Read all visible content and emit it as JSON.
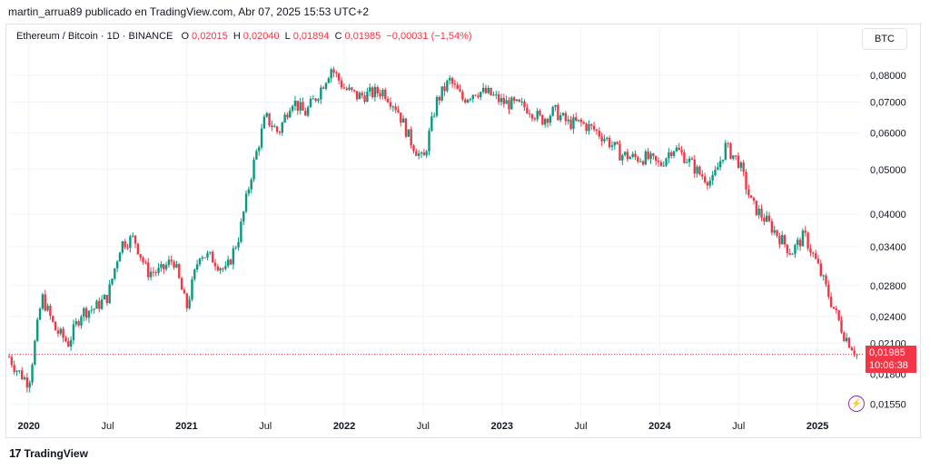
{
  "header": {
    "published_by": "martin_arrua89 publicado en TradingView.com, Abr 07, 2025 15:53 UTC+2"
  },
  "legend": {
    "symbol": "Ethereum / Bitcoin · 1D · BINANCE",
    "o_label": "O",
    "o_value": "0,02015",
    "h_label": "H",
    "h_value": "0,02040",
    "l_label": "L",
    "l_value": "0,01894",
    "c_label": "C",
    "c_value": "0,01985",
    "change": "−0,00031 (−1,54%)"
  },
  "currency_button": "BTC",
  "last_price": {
    "value": "0,01985",
    "countdown": "10:06:38"
  },
  "footer": {
    "brand": "TradingView",
    "logo_icon": "tradingview-logo-icon"
  },
  "colors": {
    "up": "#089981",
    "down": "#f23645",
    "grid": "#f0f3fa",
    "accent": "#9c27b0"
  },
  "chart_data": {
    "type": "candlestick",
    "symbol": "ETH/BTC",
    "timeframe": "1D",
    "scale": "log",
    "grid": true,
    "ylim": [
      0.0145,
      0.088
    ],
    "y_ticks": [
      "0,08000",
      "0,07000",
      "0,06000",
      "0,05000",
      "0,04000",
      "0,03400",
      "0,02800",
      "0,02400",
      "0,02100",
      "0,01800",
      "0,01550"
    ],
    "x_ticks": [
      "2020",
      "Jul",
      "2021",
      "Jul",
      "2022",
      "Jul",
      "2023",
      "Jul",
      "2024",
      "Jul",
      "2025"
    ],
    "series": [
      {
        "name": "ETH/BTC",
        "x": [
          "2019-11",
          "2019-12",
          "2020-01",
          "2020-02",
          "2020-03",
          "2020-04",
          "2020-05",
          "2020-06",
          "2020-07",
          "2020-08",
          "2020-09",
          "2020-10",
          "2020-11",
          "2020-12",
          "2021-01",
          "2021-02",
          "2021-03",
          "2021-04",
          "2021-05",
          "2021-06",
          "2021-07",
          "2021-08",
          "2021-09",
          "2021-10",
          "2021-11",
          "2021-12",
          "2022-01",
          "2022-02",
          "2022-03",
          "2022-04",
          "2022-05",
          "2022-06",
          "2022-07",
          "2022-08",
          "2022-09",
          "2022-10",
          "2022-11",
          "2022-12",
          "2023-01",
          "2023-02",
          "2023-03",
          "2023-04",
          "2023-05",
          "2023-06",
          "2023-07",
          "2023-08",
          "2023-09",
          "2023-10",
          "2023-11",
          "2023-12",
          "2024-01",
          "2024-02",
          "2024-03",
          "2024-04",
          "2024-05",
          "2024-06",
          "2024-07",
          "2024-08",
          "2024-09",
          "2024-10",
          "2024-11",
          "2024-12",
          "2025-01",
          "2025-02",
          "2025-03",
          "2025-04"
        ],
        "values": [
          0.0208,
          0.0185,
          0.0172,
          0.0265,
          0.0225,
          0.021,
          0.0245,
          0.025,
          0.0265,
          0.0345,
          0.0355,
          0.03,
          0.03,
          0.032,
          0.025,
          0.033,
          0.032,
          0.03,
          0.036,
          0.05,
          0.065,
          0.06,
          0.071,
          0.066,
          0.073,
          0.083,
          0.075,
          0.072,
          0.073,
          0.074,
          0.068,
          0.058,
          0.052,
          0.07,
          0.078,
          0.071,
          0.074,
          0.073,
          0.07,
          0.069,
          0.068,
          0.064,
          0.067,
          0.063,
          0.063,
          0.061,
          0.058,
          0.054,
          0.053,
          0.053,
          0.051,
          0.056,
          0.053,
          0.049,
          0.047,
          0.056,
          0.052,
          0.042,
          0.039,
          0.036,
          0.033,
          0.036,
          0.031,
          0.026,
          0.022,
          0.0199
        ]
      }
    ]
  }
}
